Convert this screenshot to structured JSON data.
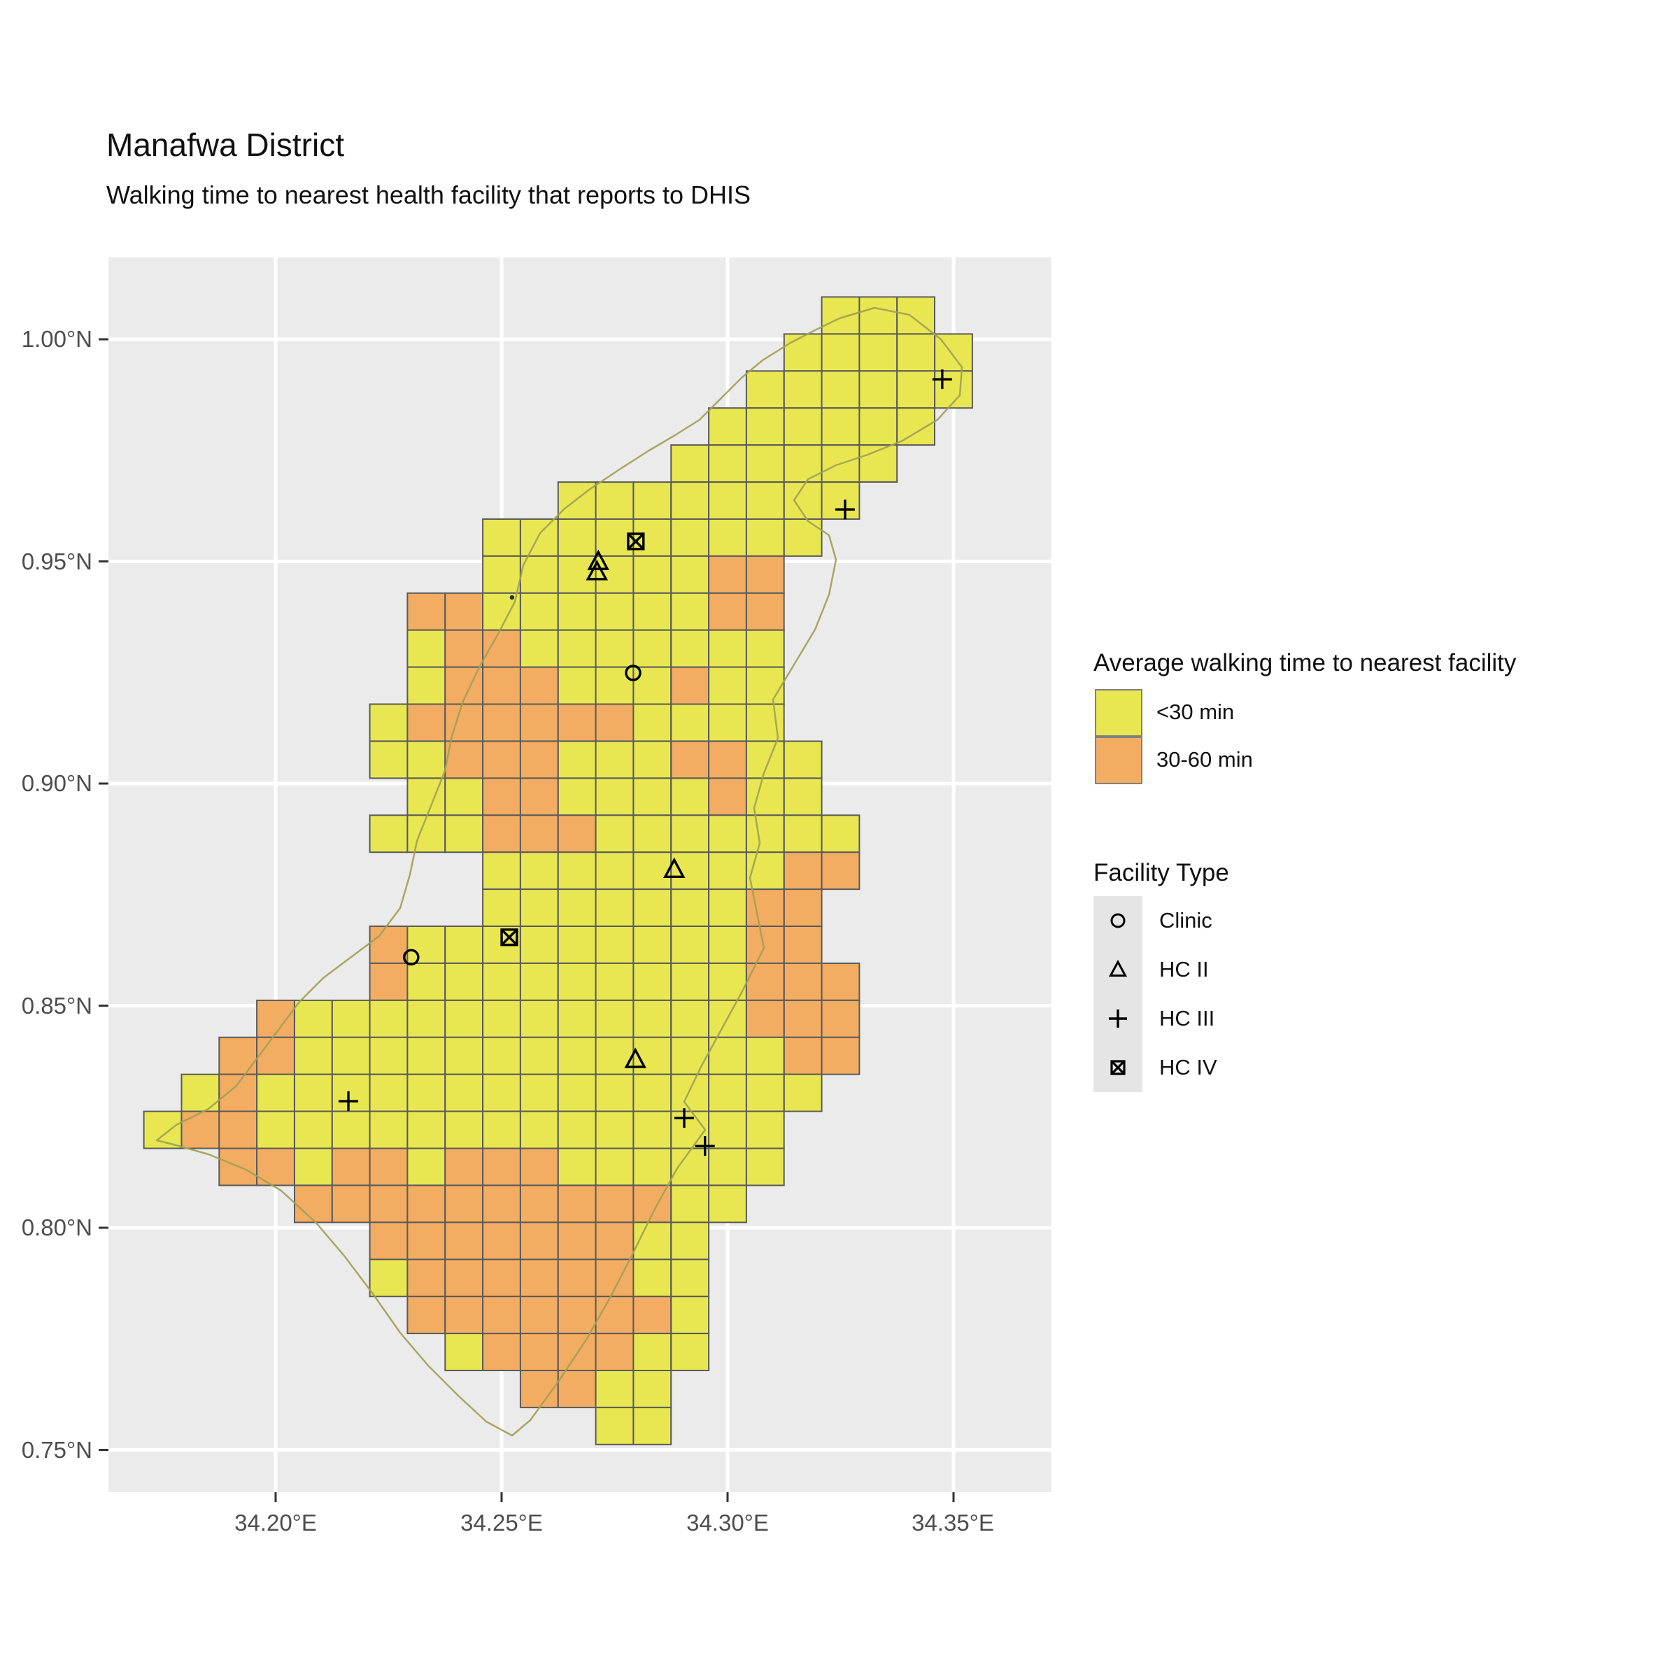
{
  "title": "Manafwa District",
  "subtitle": "Walking time to nearest health facility that reports to DHIS",
  "axes": {
    "x": {
      "labels": [
        "34.20°E",
        "34.25°E",
        "34.30°E",
        "34.35°E"
      ],
      "values_deg": [
        34.2,
        34.25,
        34.3,
        34.35
      ]
    },
    "y": {
      "labels": [
        "1.00°N",
        "0.95°N",
        "0.90°N",
        "0.85°N",
        "0.80°N",
        "0.75°N"
      ],
      "values_deg": [
        1.0,
        0.95,
        0.9,
        0.85,
        0.8,
        0.75
      ]
    }
  },
  "legend_time": {
    "title": "Average walking time to nearest facility",
    "items": [
      {
        "label": "<30 min",
        "color": "#E8E751",
        "key": "y"
      },
      {
        "label": "30-60 min",
        "color": "#F2AD62",
        "key": "o"
      }
    ]
  },
  "legend_facility": {
    "title": "Facility Type",
    "items": [
      {
        "label": "Clinic",
        "shape": "circle"
      },
      {
        "label": "HC II",
        "shape": "triangle"
      },
      {
        "label": "HC III",
        "shape": "plus"
      },
      {
        "label": "HC IV",
        "shape": "box-x"
      }
    ]
  },
  "colors": {
    "panel": "#EBEBEB",
    "gridline": "#FFFFFF",
    "cell_border": "#5A5A5A",
    "district_boundary": "#A0A055",
    "axis_text": "#4D4D4D",
    "marker": "#000000"
  },
  "chart_data": {
    "type": "heatmap",
    "title": "Manafwa District",
    "subtitle": "Walking time to nearest health facility that reports to DHIS",
    "legend_position": "right",
    "grid_on": true,
    "lon_ticks": [
      34.2,
      34.25,
      34.3,
      34.35
    ],
    "lat_ticks": [
      1.0,
      0.95,
      0.9,
      0.85,
      0.8,
      0.75
    ],
    "lon_range": [
      34.163,
      34.372
    ],
    "lat_range": [
      0.7405,
      1.0185
    ],
    "grid": {
      "comment": "y = <30 min walking time cell, o = 30-60 min cell, . = outside district; 23 cols x 31 rows; cell = 0.008333 deg",
      "origin_lon": 34.17084,
      "origin_lat": 1.00953,
      "cell_deg": 0.008333,
      "cols": 23,
      "rows": 31,
      "pattern": [
        "..................yyy..",
        ".................yyyyy.",
        "................yyyyyy.",
        "...............yyyyyy..",
        "..............yyyyyy...",
        "...........yyyyyyyy....",
        ".........yyyyyyyyy.....",
        ".........yyyyyyoo......",
        ".......ooyyyyyyoo......",
        ".......yooyyyyyyy......",
        ".......yoooyyyoyy......",
        "......yooooooyyyy......",
        "......yyoooyyyooyy.....",
        ".......yyooyyyyoyy.....",
        "......yyyoooyyyyyyy....",
        ".........yyyyyyyyoo....",
        ".........yyyyyyyoo.....",
        "......oyyyyyyyyyoo.....",
        "......oyyyyyyyyyooo....",
        "...oyyyyyyyyyyyyooo....",
        "..ooyyyyyyyyyyyyyoo....",
        ".yoyyyyyyyyyyyyyyy.....",
        "yooyyyyyyyyyyyyyy......",
        "..ooyooyoooyyyyyy......",
        "....ooooooooooyy.......",
        "......oooooooyy........",
        "......yooooooyy........",
        ".......oooooooy........",
        "........yooooyy........",
        "..........ooyy.........",
        "............yy........."
      ]
    },
    "facilities": [
      {
        "type": "HC III",
        "lon": 34.3475,
        "lat": 0.991
      },
      {
        "type": "HC III",
        "lon": 34.326,
        "lat": 0.9617
      },
      {
        "type": "HC IV",
        "lon": 34.2797,
        "lat": 0.9545
      },
      {
        "type": "HC II",
        "lon": 34.2714,
        "lat": 0.9499
      },
      {
        "type": "HC II",
        "lon": 34.2711,
        "lat": 0.9476
      },
      {
        "type": "point",
        "lon": 34.2523,
        "lat": 0.9419
      },
      {
        "type": "Clinic",
        "lon": 34.2791,
        "lat": 0.9249
      },
      {
        "type": "HC II",
        "lon": 34.2882,
        "lat": 0.8806
      },
      {
        "type": "HC IV",
        "lon": 34.2517,
        "lat": 0.8654
      },
      {
        "type": "Clinic",
        "lon": 34.23,
        "lat": 0.8609
      },
      {
        "type": "HC II",
        "lon": 34.2796,
        "lat": 0.8378
      },
      {
        "type": "HC III",
        "lon": 34.2161,
        "lat": 0.8285
      },
      {
        "type": "HC III",
        "lon": 34.2904,
        "lat": 0.8247
      },
      {
        "type": "HC III",
        "lon": 34.295,
        "lat": 0.8184
      }
    ]
  }
}
